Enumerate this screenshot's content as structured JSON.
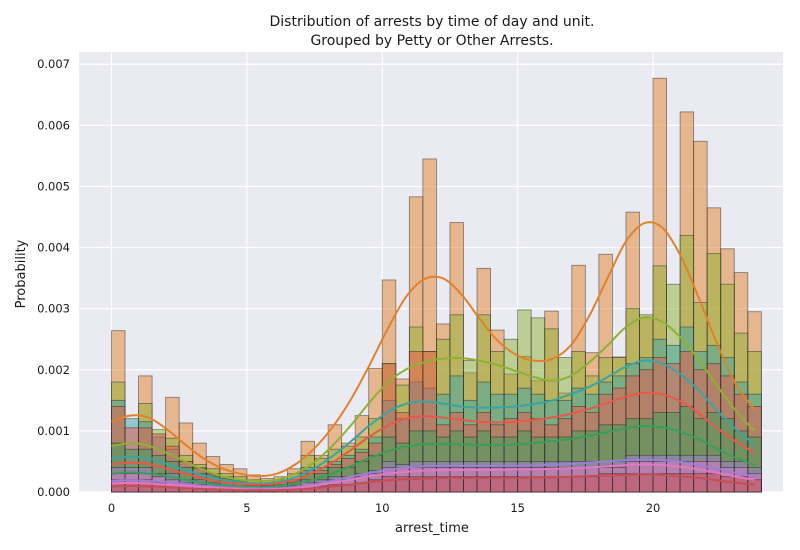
{
  "chart_data": {
    "type": "histogram",
    "title": "Distribution of arrests by time of day and unit.",
    "subtitle": "Grouped by Petty or Other Arrests.",
    "xlabel": "arrest_time",
    "ylabel": "Probability",
    "xlim": [
      -1.2,
      24.8
    ],
    "ylim": [
      0,
      0.0072
    ],
    "xticks": [
      0,
      5,
      10,
      15,
      20
    ],
    "yticks": [
      0.0,
      0.001,
      0.002,
      0.003,
      0.004,
      0.005,
      0.006,
      0.007
    ],
    "ytick_labels": [
      "0.000",
      "0.001",
      "0.002",
      "0.003",
      "0.004",
      "0.005",
      "0.006",
      "0.007"
    ],
    "grid": true,
    "background": "#eaeaf2",
    "bin_width": 0.5,
    "bin_starts": [
      0,
      0.5,
      1,
      1.5,
      2,
      2.5,
      3,
      3.5,
      4,
      4.5,
      5,
      5.5,
      6,
      6.5,
      7,
      7.5,
      8,
      8.5,
      9,
      9.5,
      10,
      10.5,
      11,
      11.5,
      12,
      12.5,
      13,
      13.5,
      14,
      14.5,
      15,
      15.5,
      16,
      16.5,
      17,
      17.5,
      18,
      18.5,
      19,
      19.5,
      20,
      20.5,
      21,
      21.5,
      22,
      22.5,
      23,
      23.5
    ],
    "series": [
      {
        "color": "#e1812c",
        "bars": [
          0.00264,
          0.0,
          0.0019,
          0.0,
          0.00155,
          0.00113,
          0.0008,
          0.00058,
          0.00045,
          0.00038,
          0.00028,
          0.00022,
          0.00025,
          0.00038,
          0.00083,
          0.0006,
          0.0011,
          0.0008,
          0.00125,
          0.00202,
          0.00347,
          0.00185,
          0.00483,
          0.00545,
          0.00275,
          0.00441,
          0.00195,
          0.00366,
          0.00265,
          0.00193,
          0.00222,
          0.00182,
          0.00296,
          0.00162,
          0.00371,
          0.00228,
          0.00389,
          0.00221,
          0.00458,
          0.00285,
          0.00677,
          0.0,
          0.00622,
          0.00574,
          0.00465,
          0.00398,
          0.00359,
          0.00295
        ],
        "kde": [
          0.00115,
          0.00125,
          0.00122,
          0.00103,
          0.00078,
          0.00055,
          0.00039,
          0.0003,
          0.00026,
          0.0003,
          0.00045,
          0.0007,
          0.00105,
          0.0015,
          0.00205,
          0.00265,
          0.00318,
          0.00348,
          0.0035,
          0.00325,
          0.00285,
          0.00248,
          0.00225,
          0.00215,
          0.00218,
          0.0024,
          0.00288,
          0.0035,
          0.0041,
          0.0044,
          0.00432,
          0.00385,
          0.00315,
          0.0024,
          0.00175,
          0.00135
        ]
      },
      {
        "color": "#8eb133",
        "bars": [
          0.0018,
          0.0,
          0.00145,
          0.00102,
          0.00088,
          0.0006,
          0.00045,
          0.00038,
          0.0003,
          0.00025,
          0.0002,
          0.00018,
          0.0002,
          0.0003,
          0.0006,
          0.00055,
          0.0007,
          0.00075,
          0.0009,
          0.0012,
          0.0021,
          0.00175,
          0.0027,
          0.0023,
          0.0025,
          0.0029,
          0.00215,
          0.0029,
          0.0023,
          0.0025,
          0.00298,
          0.00285,
          0.00267,
          0.0022,
          0.0023,
          0.0019,
          0.0022,
          0.0022,
          0.003,
          0.0029,
          0.0037,
          0.0034,
          0.0042,
          0.0031,
          0.0039,
          0.0034,
          0.0026,
          0.0023
        ],
        "kde": [
          0.00075,
          0.0008,
          0.00076,
          0.00064,
          0.0005,
          0.00036,
          0.00026,
          0.0002,
          0.00018,
          0.0002,
          0.0003,
          0.00048,
          0.00075,
          0.00108,
          0.00145,
          0.00178,
          0.002,
          0.00212,
          0.00218,
          0.00219,
          0.00215,
          0.00208,
          0.00198,
          0.00188,
          0.00182,
          0.0019,
          0.00212,
          0.0024,
          0.0027,
          0.00286,
          0.00278,
          0.00252,
          0.00215,
          0.00172,
          0.00132,
          0.001
        ]
      },
      {
        "color": "#3ba3a4",
        "bars": [
          0.0015,
          0.0012,
          0.00115,
          0.0009,
          0.0007,
          0.0005,
          0.0004,
          0.0003,
          0.00025,
          0.0002,
          0.00015,
          0.00012,
          0.00015,
          0.0002,
          0.0004,
          0.0004,
          0.0005,
          0.0006,
          0.0007,
          0.0009,
          0.0015,
          0.0012,
          0.0018,
          0.0017,
          0.0016,
          0.0019,
          0.0015,
          0.0018,
          0.0016,
          0.0016,
          0.0017,
          0.0016,
          0.0015,
          0.0015,
          0.0017,
          0.0016,
          0.0018,
          0.0019,
          0.0021,
          0.0022,
          0.0025,
          0.0024,
          0.0027,
          0.0023,
          0.0024,
          0.0022,
          0.0018,
          0.0016
        ],
        "kde": [
          0.00055,
          0.00058,
          0.00055,
          0.00046,
          0.00036,
          0.00027,
          0.0002,
          0.00016,
          0.00014,
          0.00016,
          0.00024,
          0.00038,
          0.00058,
          0.00082,
          0.00108,
          0.0013,
          0.00144,
          0.00148,
          0.00145,
          0.0014,
          0.00138,
          0.00138,
          0.0014,
          0.00144,
          0.0015,
          0.0016,
          0.00172,
          0.00188,
          0.00205,
          0.00215,
          0.0021,
          0.00192,
          0.00165,
          0.00132,
          0.00102,
          0.00078
        ]
      },
      {
        "color": "#e8574c",
        "bars": [
          0.0014,
          0.00105,
          0.00105,
          0.00095,
          0.00075,
          0.0005,
          0.00038,
          0.00028,
          0.00022,
          0.00018,
          0.00014,
          0.0001,
          0.00012,
          0.00018,
          0.00035,
          0.00035,
          0.00045,
          0.00055,
          0.00065,
          0.0008,
          0.0021,
          0.0013,
          0.0023,
          0.0023,
          0.0011,
          0.0013,
          0.0011,
          0.0013,
          0.0011,
          0.0012,
          0.0013,
          0.0012,
          0.0011,
          0.0012,
          0.0014,
          0.0013,
          0.0016,
          0.0017,
          0.0019,
          0.002,
          0.0022,
          0.0021,
          0.0023,
          0.002,
          0.0021,
          0.0019,
          0.0016,
          0.0014
        ],
        "kde": [
          0.00045,
          0.00048,
          0.00046,
          0.00038,
          0.0003,
          0.00022,
          0.00016,
          0.00013,
          0.00012,
          0.00014,
          0.0002,
          0.00032,
          0.00048,
          0.00068,
          0.0009,
          0.00108,
          0.0012,
          0.00124,
          0.00122,
          0.00118,
          0.00115,
          0.00114,
          0.00115,
          0.00118,
          0.00122,
          0.00128,
          0.00136,
          0.00146,
          0.00156,
          0.00162,
          0.0016,
          0.00148,
          0.00128,
          0.00104,
          0.00082,
          0.00064
        ]
      },
      {
        "color": "#3a9e5b",
        "bars": [
          0.0008,
          0.0007,
          0.0007,
          0.0006,
          0.0005,
          0.0004,
          0.0003,
          0.00025,
          0.0002,
          0.00015,
          0.0001,
          0.0001,
          0.0001,
          0.00015,
          0.0003,
          0.0003,
          0.0004,
          0.0004,
          0.0005,
          0.0006,
          0.0009,
          0.0008,
          0.001,
          0.001,
          0.0009,
          0.001,
          0.0009,
          0.001,
          0.0009,
          0.0009,
          0.001,
          0.0009,
          0.0009,
          0.0009,
          0.001,
          0.001,
          0.0011,
          0.0011,
          0.0012,
          0.0012,
          0.0013,
          0.0013,
          0.0014,
          0.0012,
          0.0013,
          0.0012,
          0.001,
          0.0009
        ],
        "kde": [
          0.0003,
          0.00032,
          0.0003,
          0.00026,
          0.0002,
          0.00015,
          0.00011,
          9e-05,
          8e-05,
          9e-05,
          0.00013,
          0.0002,
          0.0003,
          0.00042,
          0.00055,
          0.00066,
          0.00074,
          0.00078,
          0.00079,
          0.00078,
          0.00077,
          0.00077,
          0.00078,
          0.0008,
          0.00083,
          0.00087,
          0.00092,
          0.00098,
          0.00104,
          0.00108,
          0.00106,
          0.00098,
          0.00086,
          0.0007,
          0.00056,
          0.00044
        ]
      },
      {
        "color": "#9b7fd4",
        "bars": [
          0.0004,
          0.0004,
          0.0004,
          0.0003,
          0.0003,
          0.0002,
          0.0002,
          0.00015,
          0.0001,
          0.0001,
          8e-05,
          6e-05,
          8e-05,
          0.0001,
          0.0002,
          0.0002,
          0.00025,
          0.00025,
          0.0003,
          0.00035,
          0.0005,
          0.00045,
          0.0005,
          0.0005,
          0.0005,
          0.0005,
          0.0005,
          0.0005,
          0.0005,
          0.0005,
          0.0005,
          0.0005,
          0.0005,
          0.0005,
          0.0005,
          0.0005,
          0.0005,
          0.0005,
          0.0006,
          0.0006,
          0.0006,
          0.0006,
          0.0006,
          0.0006,
          0.0006,
          0.0005,
          0.0005,
          0.0004
        ],
        "kde": [
          0.00018,
          0.00019,
          0.00018,
          0.00016,
          0.00013,
          0.0001,
          8e-05,
          6e-05,
          6e-05,
          6e-05,
          8e-05,
          0.00012,
          0.00018,
          0.00025,
          0.00031,
          0.00036,
          0.0004,
          0.00042,
          0.00043,
          0.00043,
          0.00043,
          0.00043,
          0.00043,
          0.00044,
          0.00045,
          0.00046,
          0.00048,
          0.0005,
          0.00052,
          0.00053,
          0.00052,
          0.00049,
          0.00044,
          0.00038,
          0.00031,
          0.00025
        ]
      },
      {
        "color": "#e377c2",
        "bars": [
          0.0003,
          0.0003,
          0.0003,
          0.00025,
          0.0002,
          0.00015,
          0.00012,
          0.0001,
          8e-05,
          6e-05,
          5e-05,
          4e-05,
          5e-05,
          8e-05,
          0.00015,
          0.00015,
          0.0002,
          0.0002,
          0.00025,
          0.0003,
          0.0004,
          0.0004,
          0.0004,
          0.0004,
          0.0004,
          0.0004,
          0.0004,
          0.0004,
          0.0004,
          0.0004,
          0.0004,
          0.0004,
          0.0004,
          0.0004,
          0.0004,
          0.0004,
          0.0004,
          0.0004,
          0.0005,
          0.0005,
          0.0005,
          0.0005,
          0.0005,
          0.0005,
          0.0005,
          0.0004,
          0.0004,
          0.0003
        ],
        "kde": [
          0.00014,
          0.00015,
          0.00014,
          0.00012,
          0.0001,
          8e-05,
          6e-05,
          5e-05,
          4e-05,
          5e-05,
          7e-05,
          0.0001,
          0.00015,
          0.0002,
          0.00026,
          0.0003,
          0.00033,
          0.00035,
          0.00036,
          0.00036,
          0.00036,
          0.00036,
          0.00037,
          0.00037,
          0.00038,
          0.00039,
          0.0004,
          0.00042,
          0.00044,
          0.00045,
          0.00044,
          0.00041,
          0.00037,
          0.00031,
          0.00025,
          0.0002
        ]
      },
      {
        "color": "#c44e52",
        "bars": [
          0.0002,
          0.0002,
          0.0002,
          0.00015,
          0.00012,
          0.0001,
          8e-05,
          6e-05,
          5e-05,
          4e-05,
          3e-05,
          3e-05,
          3e-05,
          5e-05,
          0.0001,
          0.0001,
          0.00012,
          0.00012,
          0.00015,
          0.0002,
          0.00025,
          0.00025,
          0.00025,
          0.00025,
          0.00025,
          0.00025,
          0.00025,
          0.00025,
          0.00025,
          0.00025,
          0.00025,
          0.00025,
          0.00025,
          0.00025,
          0.00025,
          0.00025,
          0.0003,
          0.0003,
          0.0003,
          0.0003,
          0.0003,
          0.0003,
          0.0003,
          0.0003,
          0.0003,
          0.00025,
          0.00025,
          0.0002
        ],
        "kde": [
          9e-05,
          0.0001,
          9e-05,
          8e-05,
          6e-05,
          5e-05,
          4e-05,
          3e-05,
          3e-05,
          3e-05,
          4e-05,
          6e-05,
          9e-05,
          0.00012,
          0.00016,
          0.00019,
          0.00021,
          0.00022,
          0.00023,
          0.00023,
          0.00023,
          0.00023,
          0.00023,
          0.00024,
          0.00024,
          0.00025,
          0.00026,
          0.00027,
          0.00028,
          0.00029,
          0.00028,
          0.00026,
          0.00023,
          0.00019,
          0.00015,
          0.00012
        ]
      }
    ]
  }
}
